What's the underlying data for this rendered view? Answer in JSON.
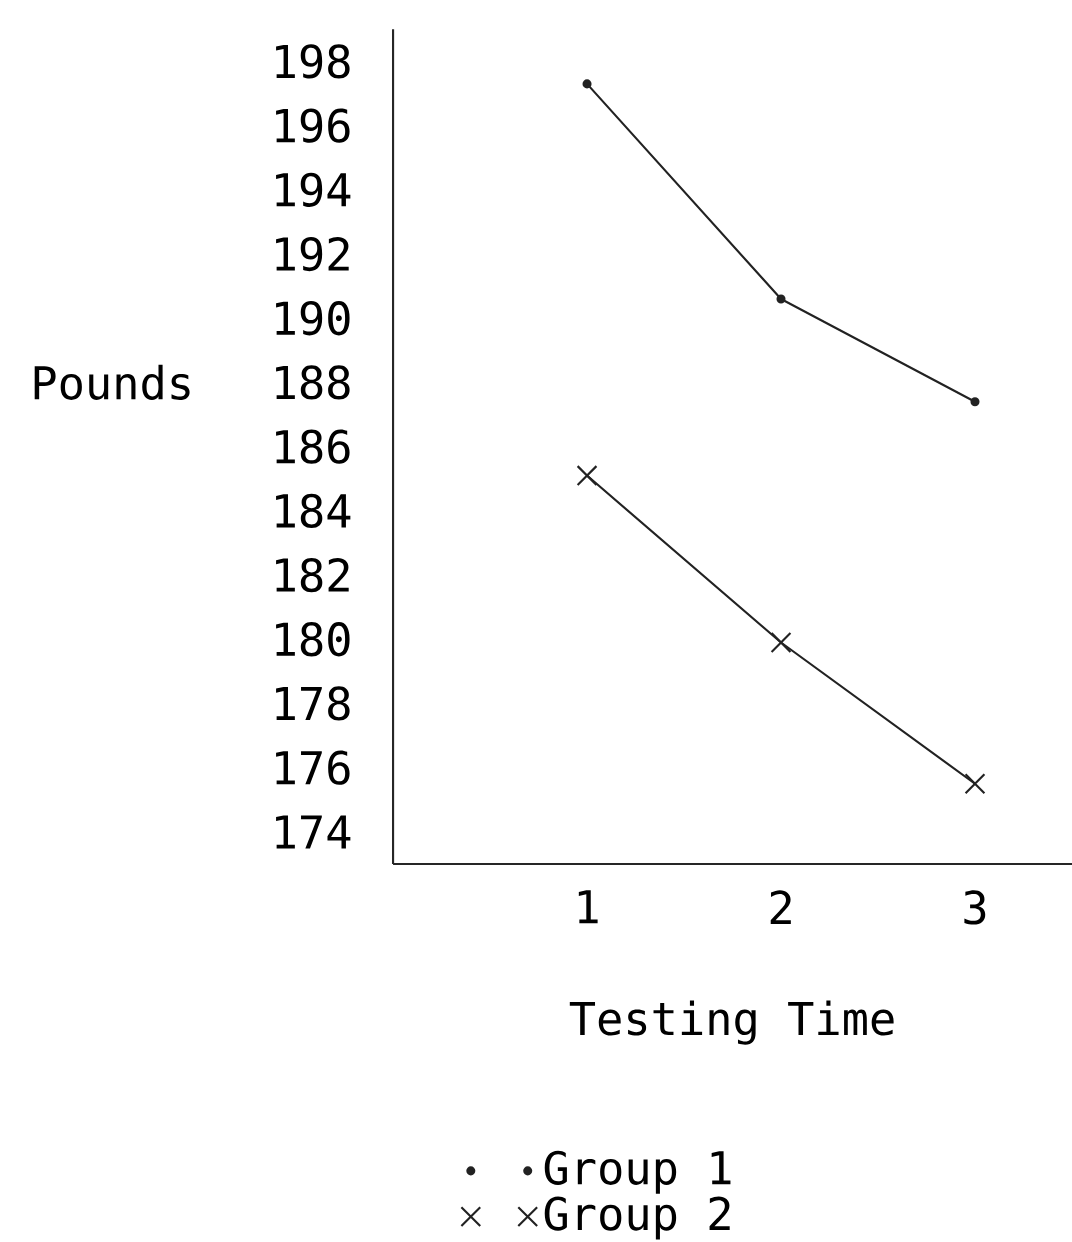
{
  "chart_data": {
    "type": "line",
    "xlabel": "Testing Time",
    "ylabel": "Pounds",
    "x": [
      1,
      2,
      3
    ],
    "series": [
      {
        "name": "Group 1",
        "color": "#222222",
        "marker": "circle",
        "values": [
          197.3,
          190.6,
          187.4
        ]
      },
      {
        "name": "Group 2",
        "color": "#222222",
        "marker": "cross",
        "values": [
          185.1,
          179.9,
          175.5
        ]
      }
    ],
    "xlim": [
      0,
      3.5
    ],
    "xticks": [
      1,
      2,
      3
    ],
    "ylim": [
      173,
      199
    ],
    "yticks": [
      174,
      176,
      178,
      180,
      182,
      184,
      186,
      188,
      190,
      192,
      194,
      196,
      198
    ],
    "grid": false,
    "legend": "bottom",
    "line_style": "solid"
  }
}
